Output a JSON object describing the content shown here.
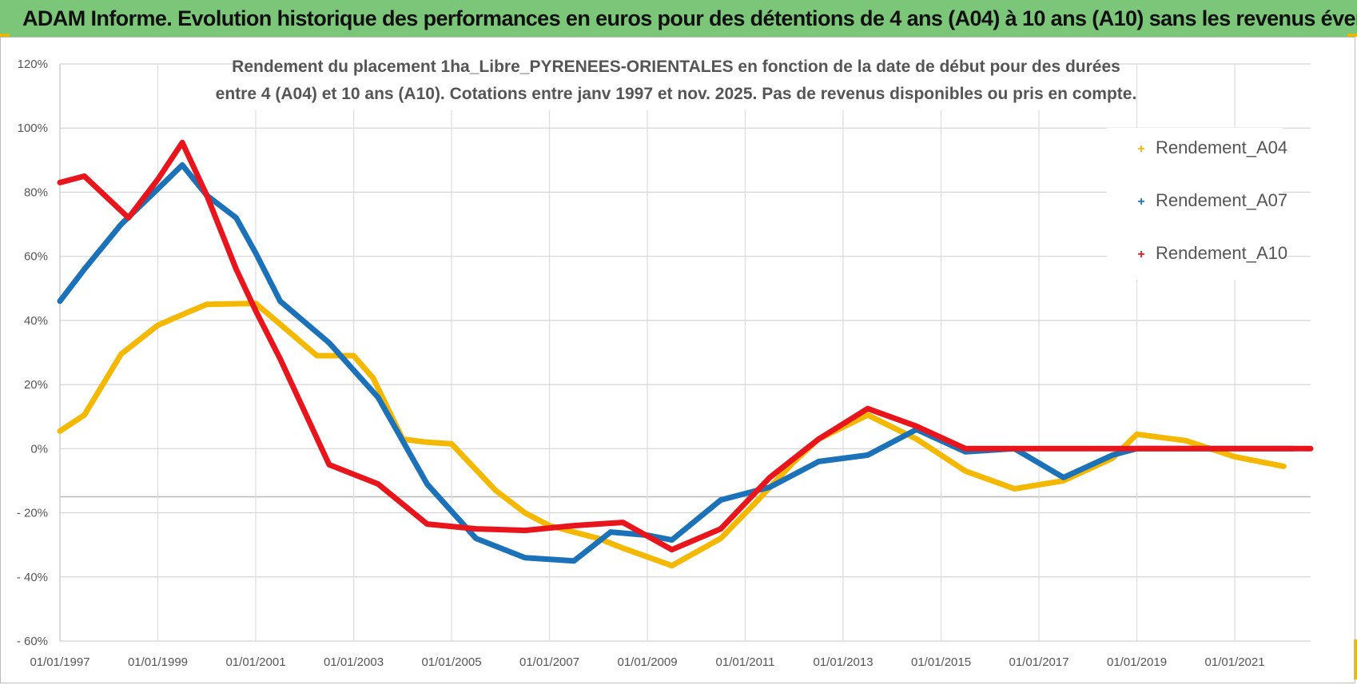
{
  "header": {
    "title": "ADAM Informe. Evolution historique des performances en euros pour des détentions de 4 ans (A04) à 10 ans (A10) sans les revenus éventuels"
  },
  "chart_data": {
    "type": "line",
    "title_line1": "Rendement du placement 1ha_Libre_PYRENEES-ORIENTALES en fonction de la date de début pour des durées",
    "title_line2": "entre 4 (A04) et 10 ans (A10).  Cotations entre janv 1997 et nov. 2025. Pas de revenus disponibles ou pris en compte.",
    "xlabel": "",
    "ylabel": "",
    "xlim": [
      1997.0,
      2022.55
    ],
    "ylim": [
      -60,
      120
    ],
    "y_ticks": [
      120,
      100,
      80,
      60,
      40,
      20,
      0,
      -20,
      -40,
      -60
    ],
    "y_tick_labels": [
      "120%",
      "100%",
      "80%",
      "60%",
      "40%",
      "20%",
      "0%",
      "- 20%",
      "- 40%",
      "- 60%"
    ],
    "x_ticks": [
      1997,
      1999,
      2001,
      2003,
      2005,
      2007,
      2009,
      2011,
      2013,
      2015,
      2017,
      2019,
      2021
    ],
    "x_tick_labels": [
      "01/01/1997",
      "01/01/1999",
      "01/01/2001",
      "01/01/2003",
      "01/01/2005",
      "01/01/2007",
      "01/01/2009",
      "01/01/2011",
      "01/01/2013",
      "01/01/2015",
      "01/01/2017",
      "01/01/2019",
      "01/01/2021"
    ],
    "legend_position": "top-right",
    "grid": true,
    "series": [
      {
        "name": "Rendement_A04",
        "color": "#f5b800",
        "points": [
          [
            1997.0,
            5.5
          ],
          [
            1997.5,
            10.5
          ],
          [
            1998.25,
            29.5
          ],
          [
            1999.0,
            38.5
          ],
          [
            1999.6,
            42.5
          ],
          [
            2000.0,
            45
          ],
          [
            2001.0,
            45.3
          ],
          [
            2002.25,
            29
          ],
          [
            2003.0,
            29
          ],
          [
            2003.4,
            22
          ],
          [
            2004.0,
            3
          ],
          [
            2004.5,
            2
          ],
          [
            2004.5,
            2
          ],
          [
            2005.0,
            1.5
          ],
          [
            2005.9,
            -13
          ],
          [
            2006.5,
            -20
          ],
          [
            2007.0,
            -24
          ],
          [
            2008.0,
            -28
          ],
          [
            2008.5,
            -31
          ],
          [
            2009.5,
            -36.5
          ],
          [
            2010.5,
            -28
          ],
          [
            2011.2,
            -17
          ],
          [
            2012.0,
            -4
          ],
          [
            2012.5,
            3
          ],
          [
            2013.5,
            10.5
          ],
          [
            2014.5,
            3
          ],
          [
            2015.5,
            -7
          ],
          [
            2016.5,
            -12.5
          ],
          [
            2017.5,
            -10
          ],
          [
            2018.5,
            -3
          ],
          [
            2019.0,
            4.5
          ],
          [
            2020.0,
            2.5
          ],
          [
            2021.0,
            -2.5
          ],
          [
            2022.0,
            -5.5
          ]
        ]
      },
      {
        "name": "Rendement_A07",
        "color": "#1b72b8",
        "points": [
          [
            1997.0,
            46
          ],
          [
            1997.5,
            56
          ],
          [
            1998.25,
            70
          ],
          [
            1999.0,
            81
          ],
          [
            1999.5,
            88.5
          ],
          [
            2000.0,
            79
          ],
          [
            2000.6,
            72
          ],
          [
            2001.0,
            61
          ],
          [
            2001.5,
            46
          ],
          [
            2002.5,
            33
          ],
          [
            2003.5,
            16
          ],
          [
            2004.5,
            -11
          ],
          [
            2005.5,
            -28
          ],
          [
            2006.5,
            -34
          ],
          [
            2007.5,
            -35
          ],
          [
            2008.25,
            -26
          ],
          [
            2009.0,
            -27
          ],
          [
            2009.5,
            -28.5
          ],
          [
            2010.5,
            -16
          ],
          [
            2011.5,
            -12
          ],
          [
            2012.5,
            -4
          ],
          [
            2013.5,
            -2
          ],
          [
            2014.5,
            6
          ],
          [
            2015.5,
            -1
          ],
          [
            2016.5,
            0
          ],
          [
            2017.5,
            -9
          ],
          [
            2018.5,
            -2
          ],
          [
            2019.0,
            0
          ],
          [
            2020.0,
            0
          ],
          [
            2021.0,
            0
          ],
          [
            2022.2,
            0
          ]
        ]
      },
      {
        "name": "Rendement_A10",
        "color": "#e8161c",
        "points": [
          [
            1997.0,
            83
          ],
          [
            1997.5,
            85
          ],
          [
            1998.4,
            72
          ],
          [
            1999.0,
            84
          ],
          [
            1999.5,
            95.5
          ],
          [
            2000.0,
            79
          ],
          [
            2000.6,
            56
          ],
          [
            2001.0,
            43
          ],
          [
            2001.5,
            28
          ],
          [
            2002.5,
            -5
          ],
          [
            2003.5,
            -11
          ],
          [
            2004.5,
            -23.5
          ],
          [
            2005.5,
            -25
          ],
          [
            2006.5,
            -25.5
          ],
          [
            2007.5,
            -24
          ],
          [
            2008.5,
            -23
          ],
          [
            2009.5,
            -31.5
          ],
          [
            2010.5,
            -25
          ],
          [
            2011.5,
            -9
          ],
          [
            2012.5,
            3
          ],
          [
            2013.5,
            12.5
          ],
          [
            2014.5,
            7
          ],
          [
            2015.5,
            0
          ],
          [
            2016.5,
            0
          ],
          [
            2017.5,
            0
          ],
          [
            2018.5,
            0
          ],
          [
            2019.0,
            0
          ],
          [
            2020.0,
            0
          ],
          [
            2021.0,
            0
          ],
          [
            2022.55,
            0
          ]
        ]
      }
    ]
  }
}
